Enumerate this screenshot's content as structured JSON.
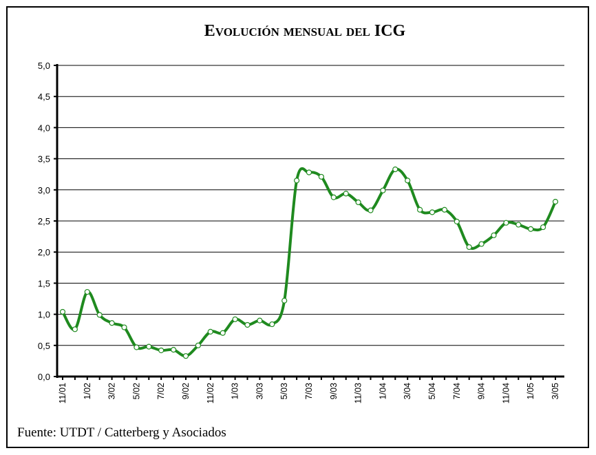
{
  "chart_data": {
    "type": "line",
    "title": "Evolución mensual del ICG",
    "source": "Fuente: UTDT / Catterberg y Asociados",
    "categories": [
      "11/01",
      null,
      "1/02",
      null,
      "3/02",
      null,
      "5/02",
      null,
      "7/02",
      null,
      "9/02",
      null,
      "11/02",
      null,
      "1/03",
      null,
      "3/03",
      null,
      "5/03",
      null,
      "7/03",
      null,
      "9/03",
      null,
      "11/03",
      null,
      "1/04",
      null,
      "3/04",
      null,
      "5/04",
      null,
      "7/04",
      null,
      "9/04",
      null,
      "11/04",
      null,
      "1/05",
      null,
      "3/05"
    ],
    "series": [
      {
        "name": "ICG",
        "color": "#1f8a1f",
        "values": [
          1.04,
          0.76,
          1.36,
          0.99,
          0.86,
          0.79,
          0.47,
          0.48,
          0.42,
          0.43,
          0.33,
          0.5,
          0.72,
          0.7,
          0.92,
          0.83,
          0.9,
          0.84,
          1.22,
          3.15,
          3.28,
          3.21,
          2.88,
          2.94,
          2.8,
          2.67,
          2.99,
          3.33,
          3.15,
          2.68,
          2.64,
          2.68,
          2.49,
          2.08,
          2.13,
          2.27,
          2.47,
          2.44,
          2.37,
          2.4,
          2.81
        ]
      }
    ],
    "ylim": [
      0,
      5
    ],
    "yticks": [
      {
        "value": 0,
        "label": "0,0"
      },
      {
        "value": 0.5,
        "label": "0,5"
      },
      {
        "value": 1,
        "label": "1,0"
      },
      {
        "value": 1.5,
        "label": "1,5"
      },
      {
        "value": 2,
        "label": "2,0"
      },
      {
        "value": 2.5,
        "label": "2,5"
      },
      {
        "value": 3,
        "label": "3,0"
      },
      {
        "value": 3.5,
        "label": "3,5"
      },
      {
        "value": 4,
        "label": "4,0"
      },
      {
        "value": 4.5,
        "label": "4,5"
      },
      {
        "value": 5,
        "label": "5,0"
      }
    ],
    "grid": true
  }
}
